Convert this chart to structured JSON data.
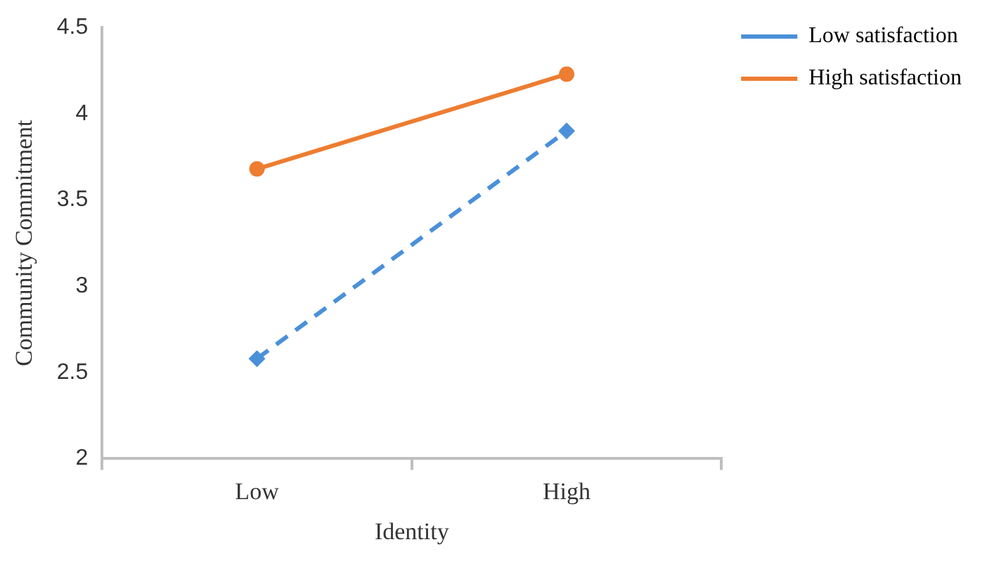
{
  "chart_data": {
    "type": "line",
    "xlabel": "Identity",
    "ylabel": "Community Commitment",
    "categories": [
      "Low",
      "High"
    ],
    "series": [
      {
        "name": "Low satisfaction",
        "color": "#4a90d9",
        "values": [
          2.58,
          3.9
        ],
        "marker": "diamond",
        "line_style": "dashed"
      },
      {
        "name": "High satisfaction",
        "color": "#ed7d31",
        "values": [
          3.68,
          4.23
        ],
        "marker": "circle",
        "line_style": "solid"
      }
    ],
    "ylim": [
      2,
      4.5
    ],
    "yticks": [
      2,
      2.5,
      3,
      3.5,
      4,
      4.5
    ],
    "grid": false,
    "legend": "top right"
  }
}
